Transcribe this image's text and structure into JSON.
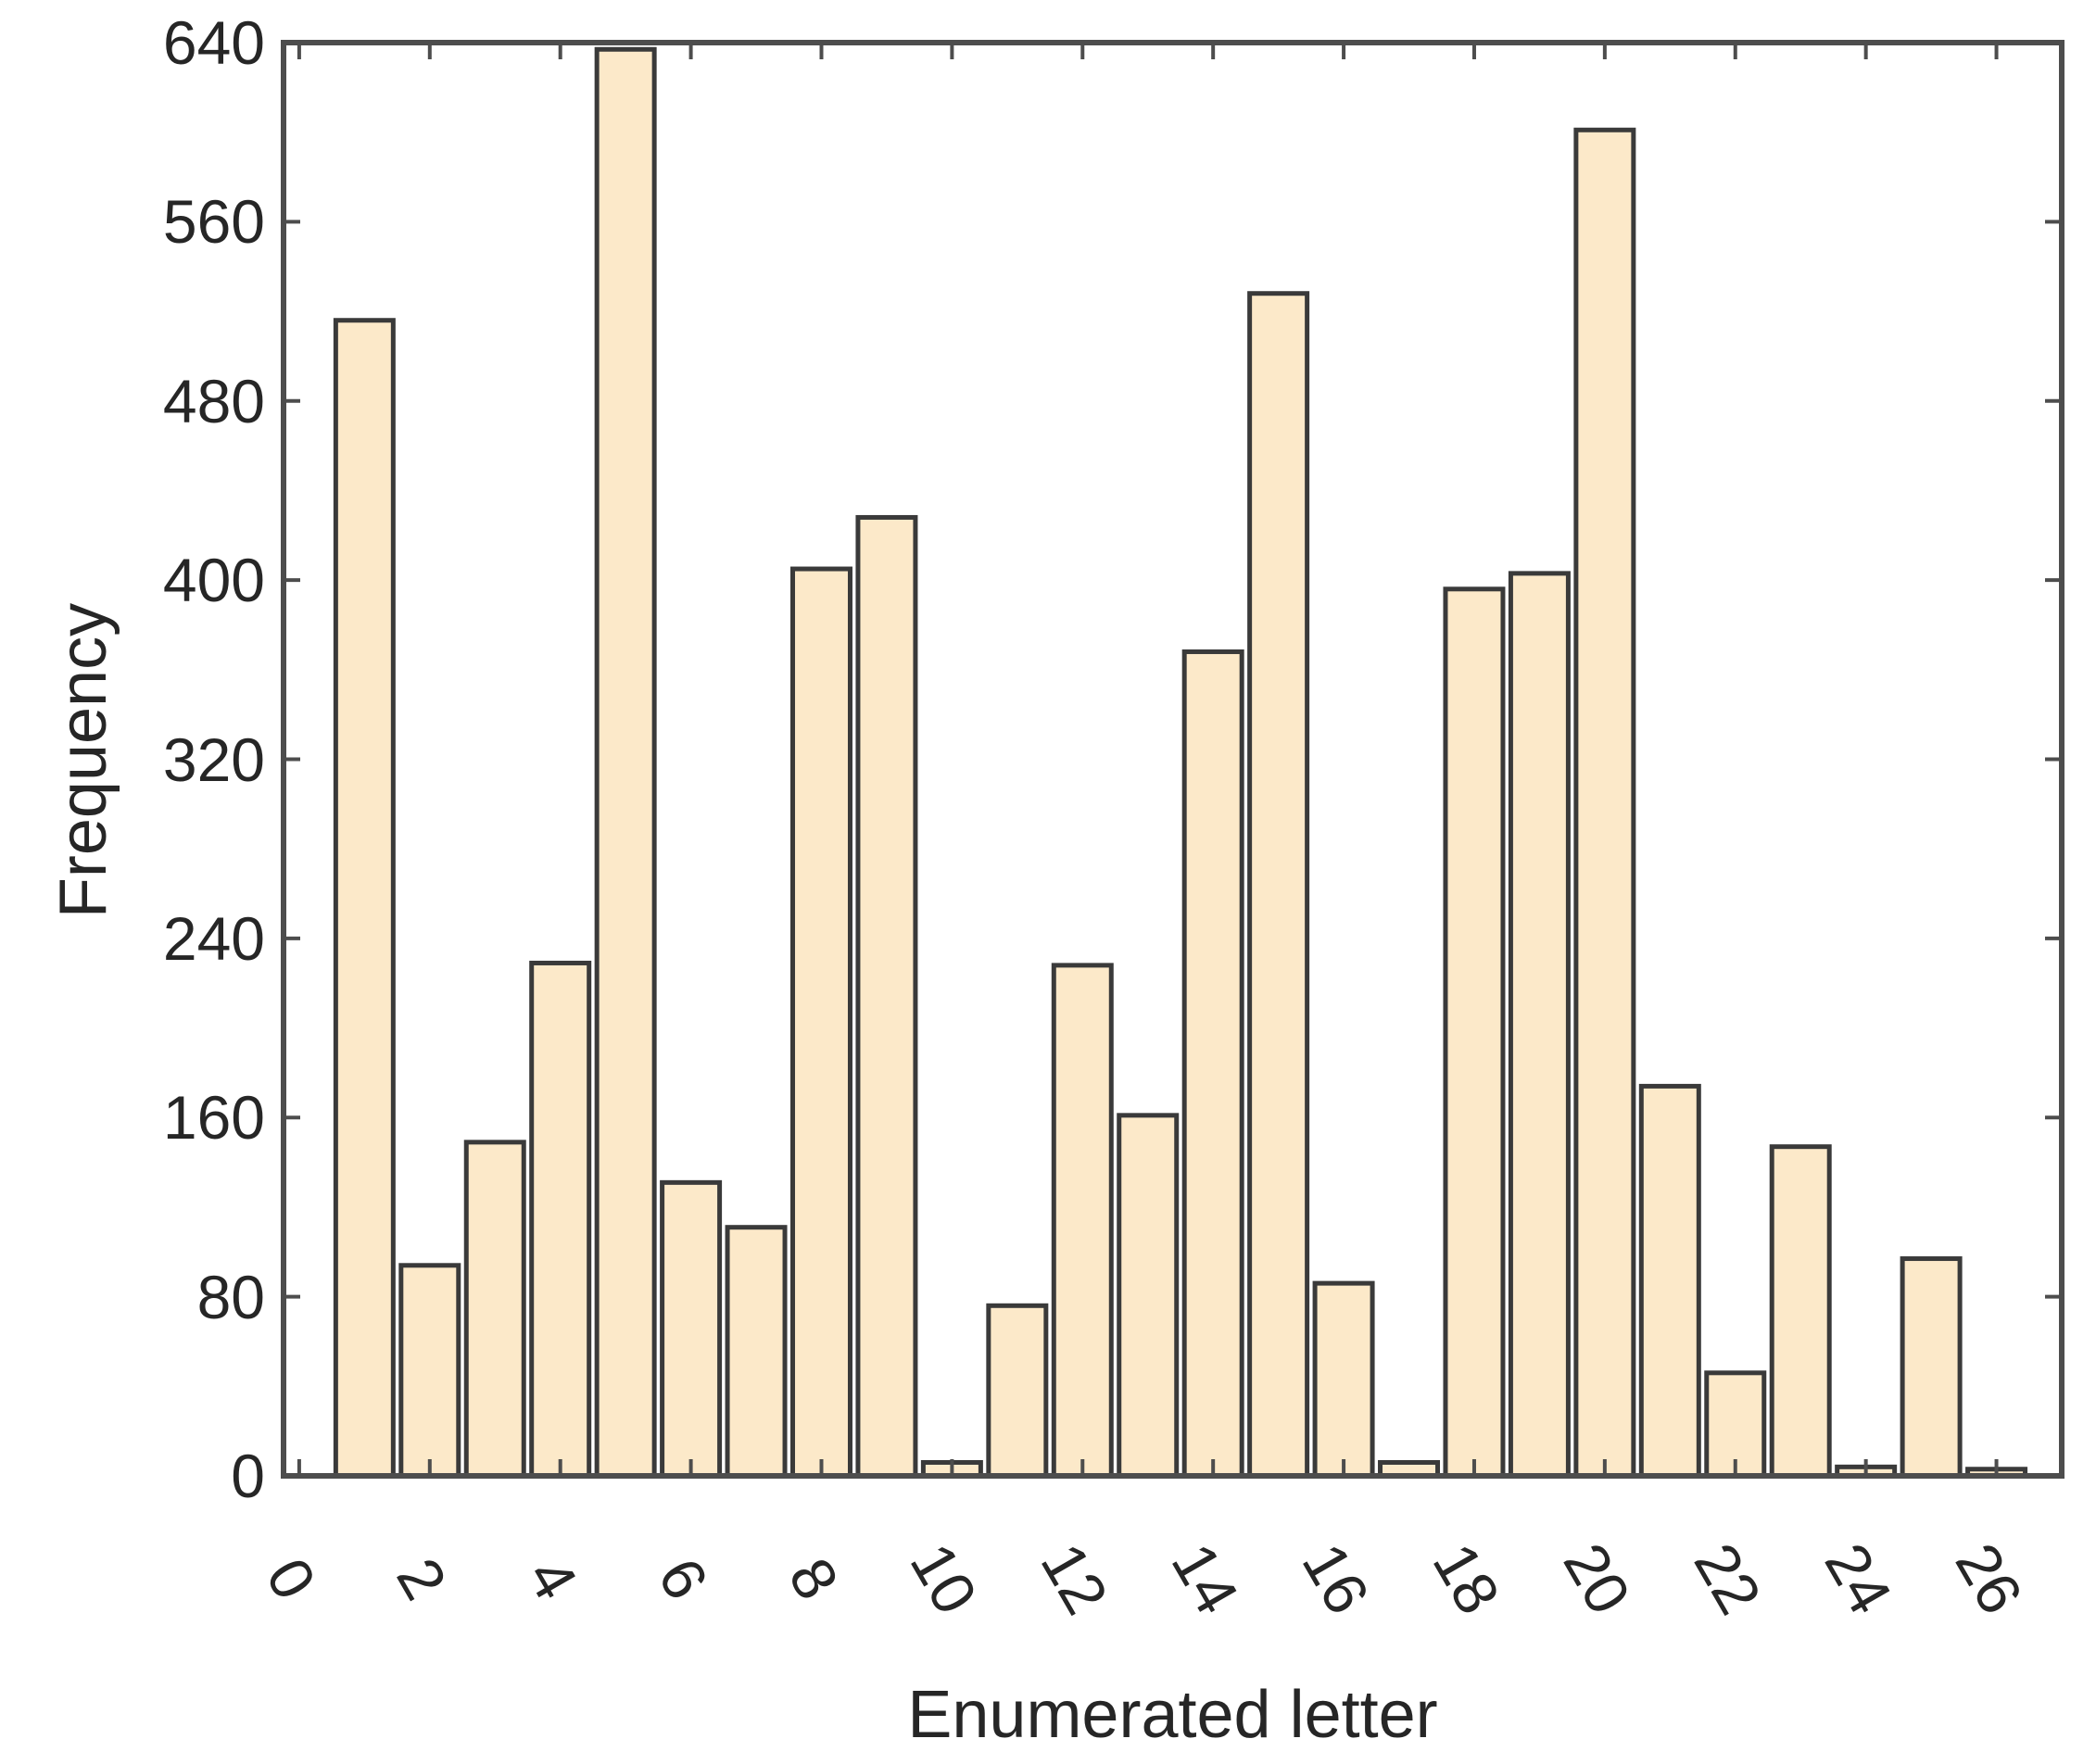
{
  "chart_data": {
    "type": "bar",
    "title": "",
    "xlabel": "Enumerated letter",
    "ylabel": "Frequency",
    "x": [
      1,
      2,
      3,
      4,
      5,
      6,
      7,
      8,
      9,
      10,
      11,
      12,
      13,
      14,
      15,
      16,
      17,
      18,
      19,
      20,
      21,
      22,
      23,
      24,
      25,
      26
    ],
    "values": [
      516,
      94,
      149,
      229,
      637,
      131,
      111,
      405,
      428,
      6,
      76,
      228,
      161,
      368,
      528,
      86,
      6,
      396,
      403,
      601,
      174,
      46,
      147,
      4,
      97,
      3
    ],
    "xlim": [
      -0.24,
      27.0
    ],
    "ylim": [
      0,
      640
    ],
    "xticks": [
      0,
      2,
      4,
      6,
      8,
      10,
      12,
      14,
      16,
      18,
      20,
      22,
      24,
      26
    ],
    "yticks": [
      0,
      80,
      160,
      240,
      320,
      400,
      480,
      560,
      640
    ],
    "xtick_rotation": 60,
    "grid": false,
    "legend": null,
    "bar_width": 0.88,
    "colors": {
      "bar_fill": "#FCE9C9",
      "bar_edge": "#3a3a3a",
      "axis": "#4d4d4d",
      "text": "#262626"
    }
  }
}
